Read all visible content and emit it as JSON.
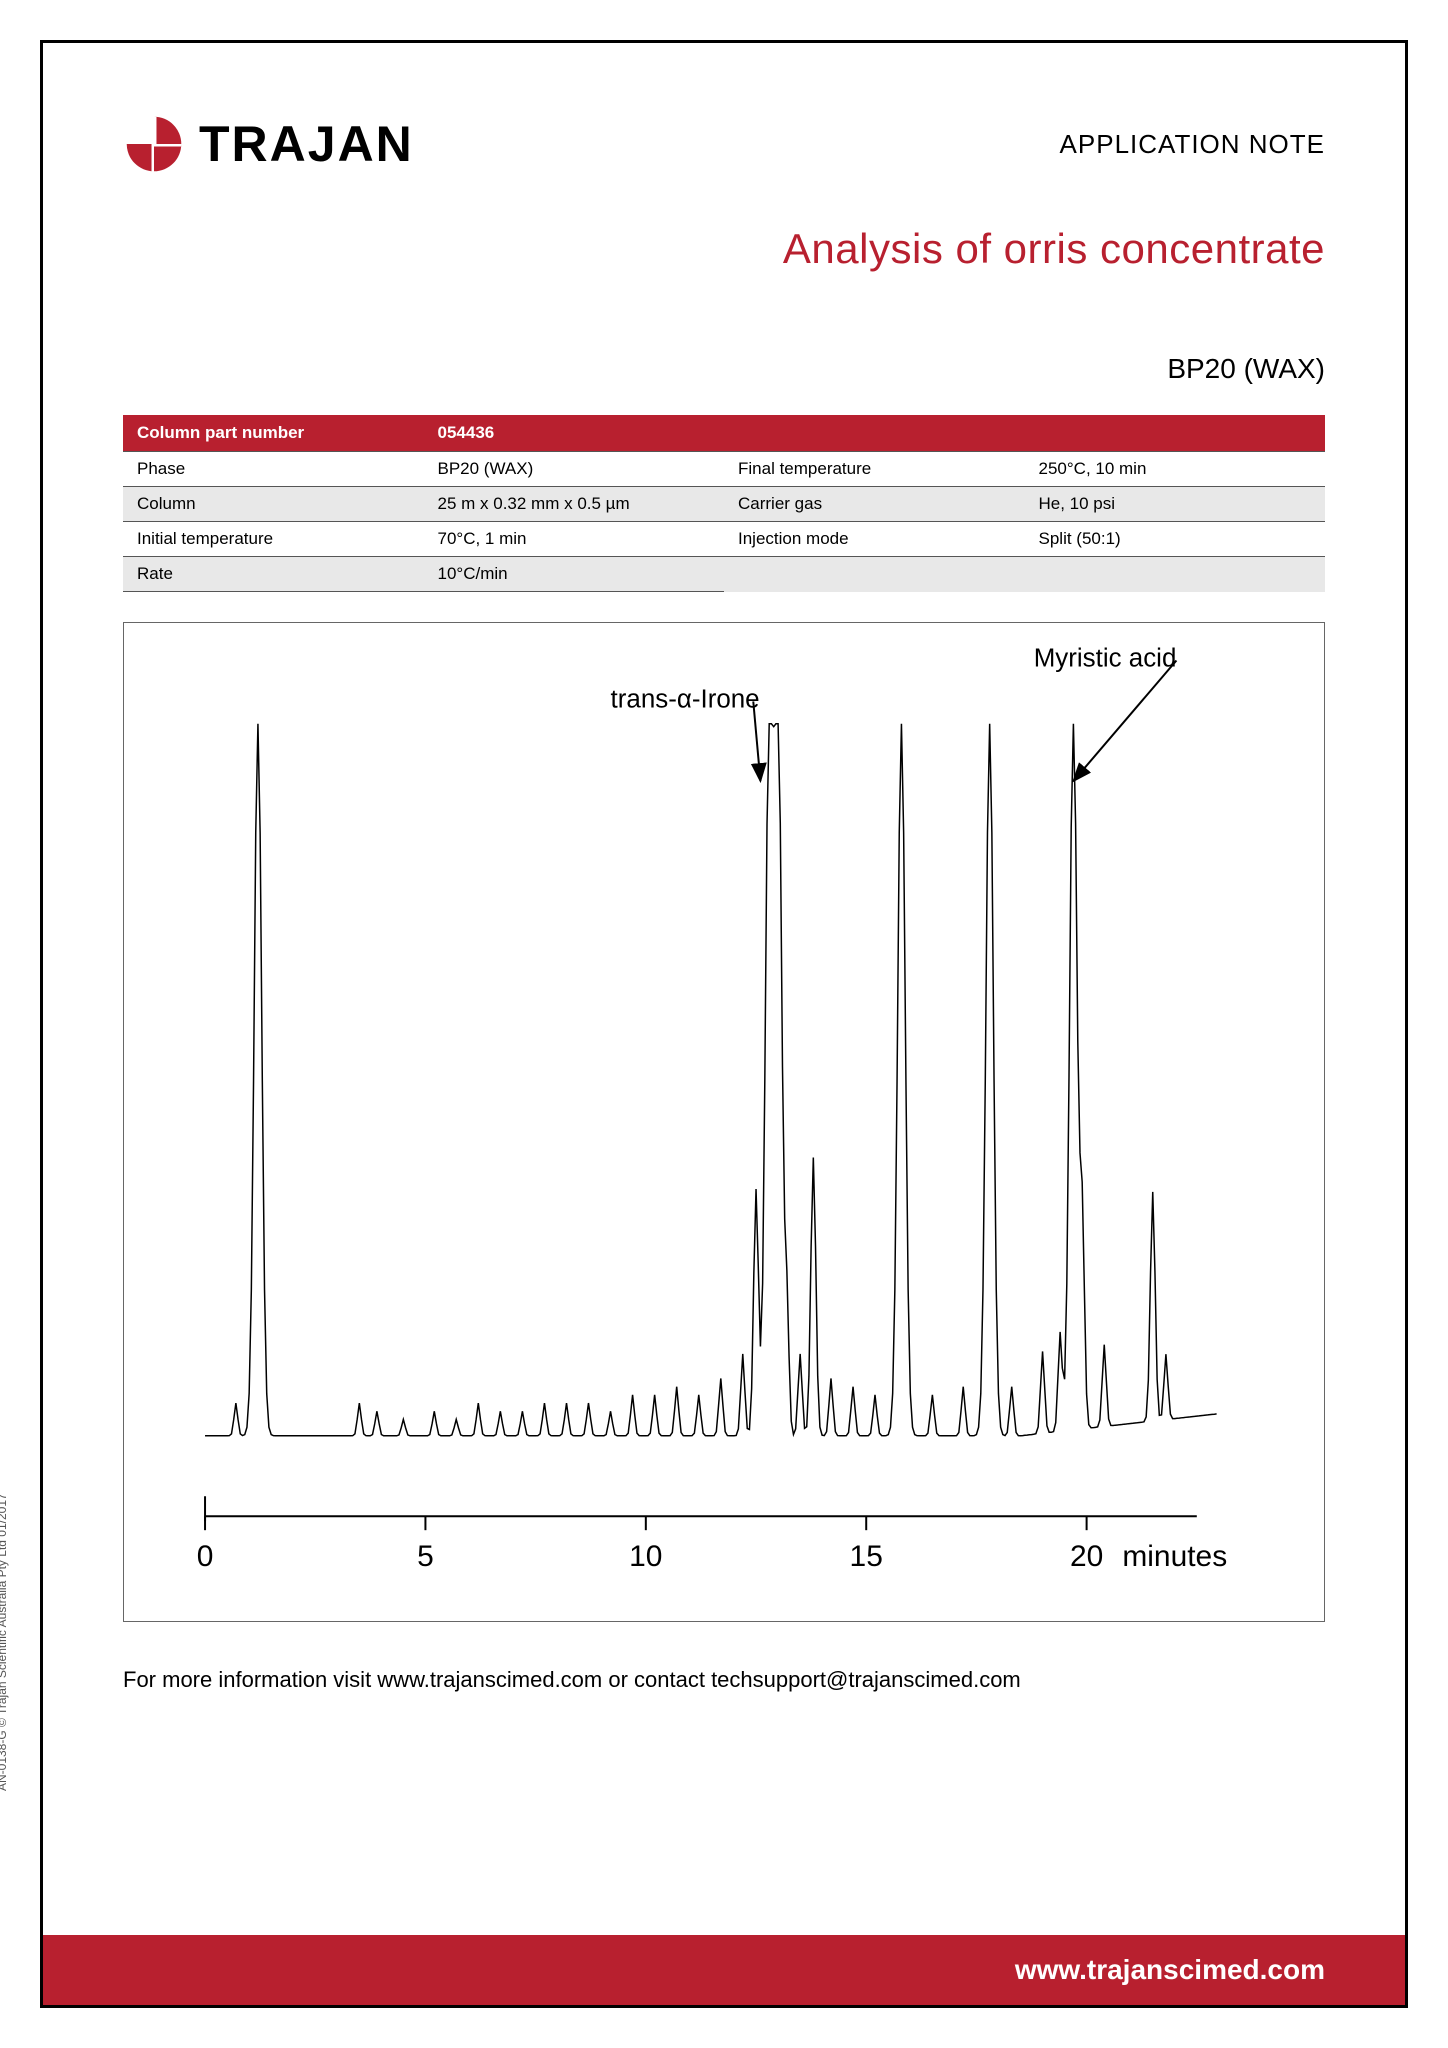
{
  "header": {
    "logo_text": "TRAJAN",
    "app_note": "APPLICATION NOTE"
  },
  "title": "Analysis of orris concentrate",
  "subtitle": "BP20 (WAX)",
  "table": {
    "header_label": "Column part number",
    "header_value": "054436",
    "rows": [
      {
        "l1": "Phase",
        "v1": "BP20 (WAX)",
        "l2": "Final temperature",
        "v2": "250°C, 10 min"
      },
      {
        "l1": "Column",
        "v1": "25 m x 0.32 mm x 0.5 µm",
        "l2": "Carrier gas",
        "v2": "He, 10 psi"
      },
      {
        "l1": "Initial temperature",
        "v1": "70°C, 1 min",
        "l2": "Injection mode",
        "v2": "Split (50:1)"
      },
      {
        "l1": "Rate",
        "v1": "10°C/min",
        "l2": "",
        "v2": ""
      }
    ]
  },
  "chart": {
    "type": "chromatogram",
    "x_axis_label": "minutes",
    "x_ticks": [
      0,
      5,
      10,
      15,
      20
    ],
    "xlim": [
      0,
      24
    ],
    "ylim": [
      0,
      100
    ],
    "baseline_y": 8,
    "line_color": "#000000",
    "line_width": 1.5,
    "background_color": "#ffffff",
    "annotations": [
      {
        "label": "trans-α-Irone",
        "x_text": 9.2,
        "y_text": 97,
        "arrow_to_x": 12.6,
        "arrow_to_y": 88,
        "fontsize": 26
      },
      {
        "label": "Myristic acid",
        "x_text": 18.8,
        "y_text": 102,
        "arrow_to_x": 19.7,
        "arrow_to_y": 88,
        "fontsize": 26
      }
    ],
    "peaks": [
      {
        "x": 0.7,
        "h": 4
      },
      {
        "x": 1.2,
        "h": 88
      },
      {
        "x": 3.5,
        "h": 4
      },
      {
        "x": 3.9,
        "h": 3
      },
      {
        "x": 4.5,
        "h": 2
      },
      {
        "x": 5.2,
        "h": 3
      },
      {
        "x": 5.7,
        "h": 2
      },
      {
        "x": 6.2,
        "h": 4
      },
      {
        "x": 6.7,
        "h": 3
      },
      {
        "x": 7.2,
        "h": 3
      },
      {
        "x": 7.7,
        "h": 4
      },
      {
        "x": 8.2,
        "h": 4
      },
      {
        "x": 8.7,
        "h": 4
      },
      {
        "x": 9.2,
        "h": 3
      },
      {
        "x": 9.7,
        "h": 5
      },
      {
        "x": 10.2,
        "h": 5
      },
      {
        "x": 10.7,
        "h": 6
      },
      {
        "x": 11.2,
        "h": 5
      },
      {
        "x": 11.7,
        "h": 7
      },
      {
        "x": 12.2,
        "h": 10
      },
      {
        "x": 12.5,
        "h": 30
      },
      {
        "x": 12.8,
        "h": 88
      },
      {
        "x": 13.0,
        "h": 88
      },
      {
        "x": 13.2,
        "h": 15
      },
      {
        "x": 13.5,
        "h": 10
      },
      {
        "x": 13.8,
        "h": 34
      },
      {
        "x": 14.2,
        "h": 7
      },
      {
        "x": 14.7,
        "h": 6
      },
      {
        "x": 15.2,
        "h": 5
      },
      {
        "x": 15.8,
        "h": 88
      },
      {
        "x": 16.5,
        "h": 5
      },
      {
        "x": 17.2,
        "h": 6
      },
      {
        "x": 17.8,
        "h": 88
      },
      {
        "x": 18.3,
        "h": 6
      },
      {
        "x": 19.0,
        "h": 10
      },
      {
        "x": 19.4,
        "h": 12
      },
      {
        "x": 19.7,
        "h": 88
      },
      {
        "x": 19.9,
        "h": 25
      },
      {
        "x": 20.4,
        "h": 10
      },
      {
        "x": 21.5,
        "h": 28
      },
      {
        "x": 21.8,
        "h": 8
      }
    ]
  },
  "more_info": "For more information visit www.trajanscimed.com or contact techsupport@trajanscimed.com",
  "side_credit": "AN-0138-G © Trajan Scientific Australia Pty Ltd 01/2017",
  "footer_url": "www.trajanscimed.com",
  "colors": {
    "accent": "#b8202f",
    "text": "#000000",
    "row_alt": "#e8e8e8",
    "border": "#666666"
  }
}
